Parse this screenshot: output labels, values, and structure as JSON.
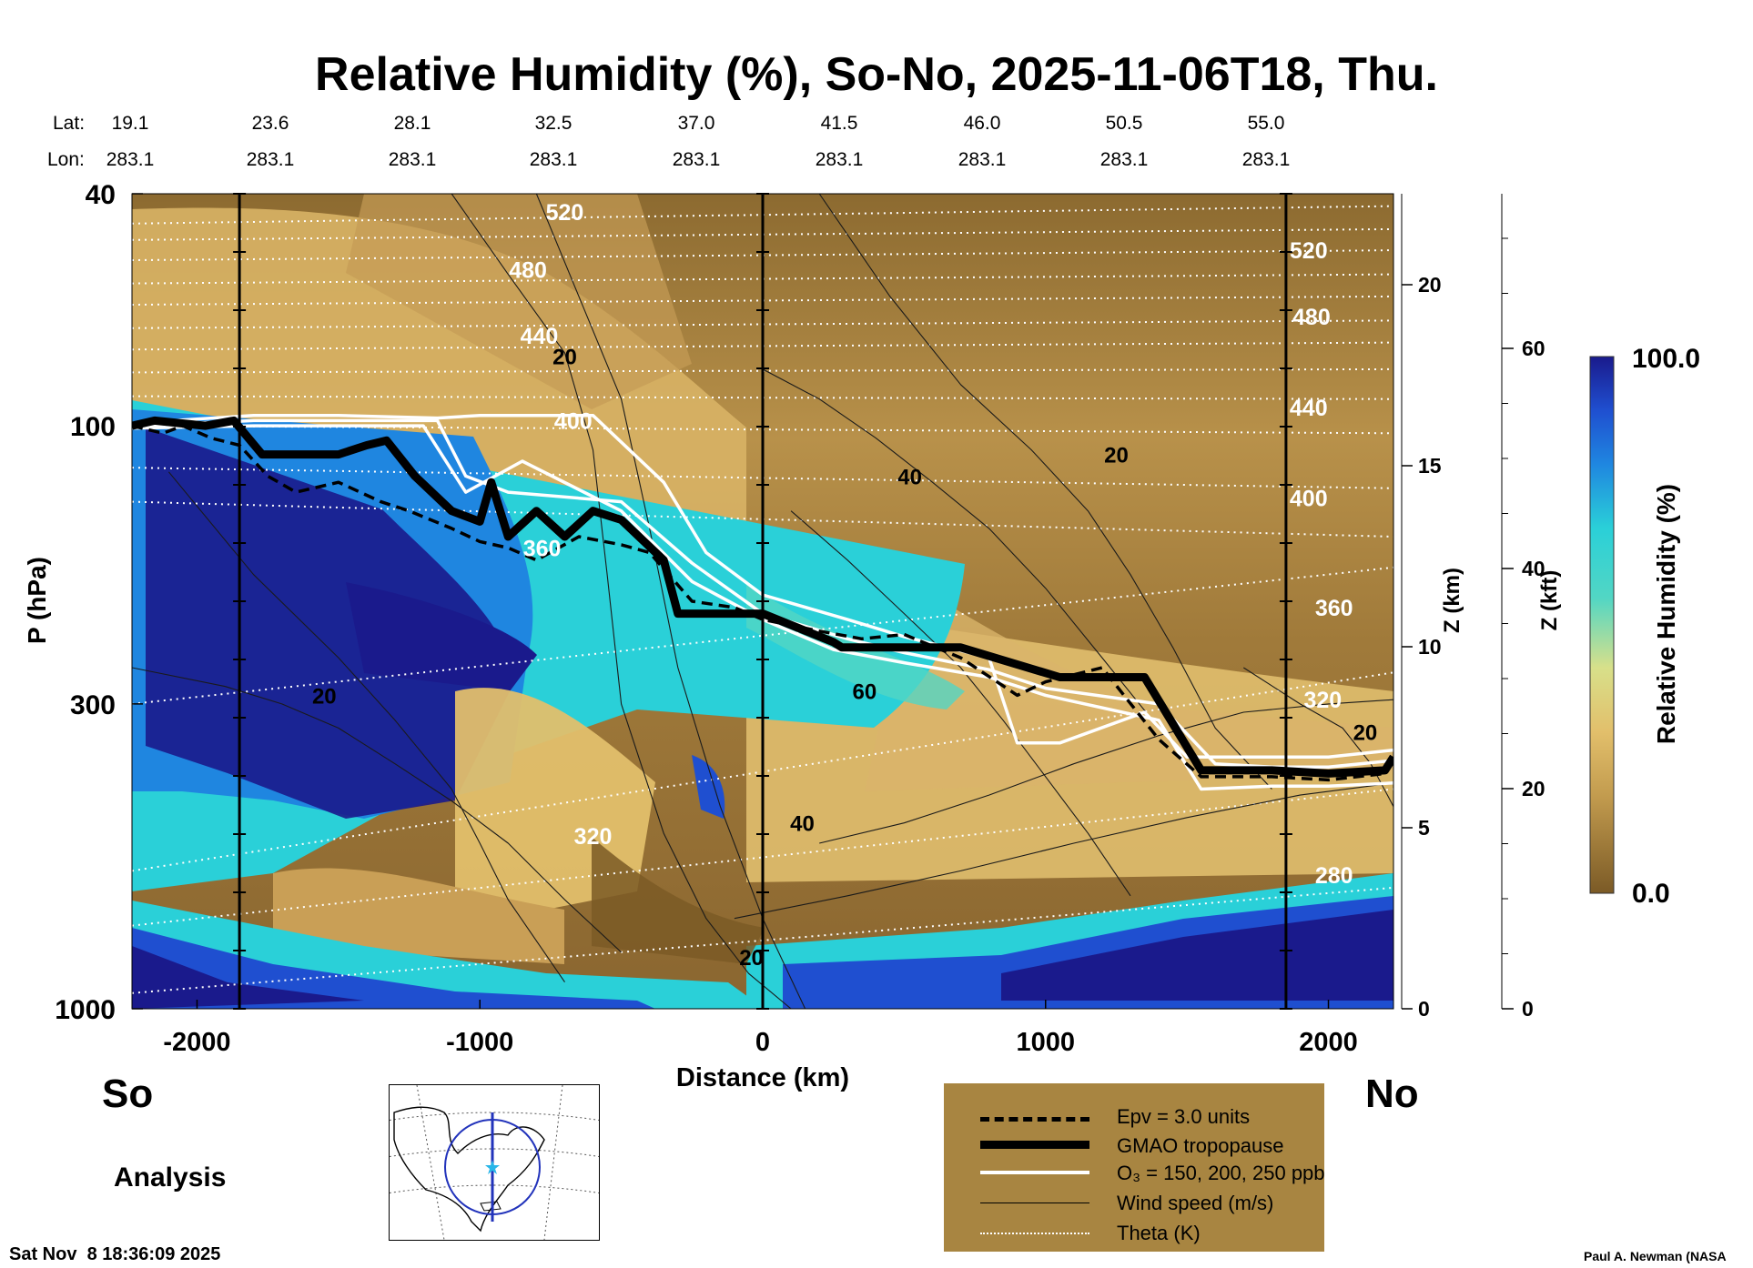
{
  "title": "Relative Humidity (%), So-No, 2025-11-06T18, Thu.",
  "header": {
    "lat_label": "Lat:",
    "lon_label": "Lon:",
    "lat": [
      "19.1",
      "23.6",
      "28.1",
      "32.5",
      "37.0",
      "41.5",
      "46.0",
      "50.5",
      "55.0"
    ],
    "lon": [
      "283.1",
      "283.1",
      "283.1",
      "283.1",
      "283.1",
      "283.1",
      "283.1",
      "283.1",
      "283.1"
    ]
  },
  "left_end": "So",
  "right_end": "No",
  "analysis_label": "Analysis",
  "timestamp": "Sat Nov  8 18:36:09 2025",
  "credit": "Paul A. Newman (NASA",
  "colors": {
    "brown_dry": "#7b5a26",
    "tan": "#e2bf6b",
    "cyan": "#2ad0d8",
    "blue": "#1f4fd0",
    "navy": "#1a1a8c",
    "legend_bg": "#a88541"
  },
  "legend": {
    "epv": "Epv = 3.0 units",
    "tropopause": "GMAO tropopause",
    "o3": "O₃ = 150, 200, 250 ppb",
    "wind": "Wind speed (m/s)",
    "theta": "Theta (K)"
  },
  "colorbar": {
    "max_label": "100.0",
    "min_label": "0.0",
    "title": "Relative Humidity (%)"
  },
  "chart_data": {
    "type": "heatmap",
    "title": "Relative Humidity (%), So-No, 2025-11-06T18, Thu.",
    "xlabel": "Distance (km)",
    "ylabel": "P (hPa)",
    "xlim": [
      -2230,
      2230
    ],
    "ylim": [
      1000,
      40
    ],
    "y_scale": "log",
    "x_ticks": [
      "-2000",
      "-1000",
      "0",
      "1000",
      "2000"
    ],
    "x_tick_values": [
      -2000,
      -1000,
      0,
      1000,
      2000
    ],
    "y_ticks": [
      "40",
      "100",
      "300",
      "1000"
    ],
    "y_tick_values": [
      40,
      100,
      300,
      1000
    ],
    "z_km_label": "Z (km)",
    "z_km_ticks": [
      "0",
      "5",
      "10",
      "15",
      "20"
    ],
    "z_km_values": [
      0,
      5,
      10,
      15,
      20
    ],
    "z_kft_label": "Z (kft)",
    "z_kft_ticks": [
      "0",
      "20",
      "40",
      "60"
    ],
    "z_kft_values": [
      0,
      20,
      40,
      60
    ],
    "colorbar_range": [
      0,
      100
    ],
    "theta_labels": [
      {
        "text": "520",
        "x": -700,
        "p": 43
      },
      {
        "text": "480",
        "x": -830,
        "p": 54
      },
      {
        "text": "440",
        "x": -790,
        "p": 70
      },
      {
        "text": "400",
        "x": -670,
        "p": 98
      },
      {
        "text": "360",
        "x": -780,
        "p": 162
      },
      {
        "text": "320",
        "x": -600,
        "p": 505
      },
      {
        "text": "520",
        "x": 1930,
        "p": 50
      },
      {
        "text": "480",
        "x": 1940,
        "p": 65
      },
      {
        "text": "440",
        "x": 1930,
        "p": 93
      },
      {
        "text": "400",
        "x": 1930,
        "p": 133
      },
      {
        "text": "360",
        "x": 2020,
        "p": 205
      },
      {
        "text": "320",
        "x": 1980,
        "p": 295
      },
      {
        "text": "280",
        "x": 2020,
        "p": 590
      }
    ],
    "wind_labels": [
      {
        "text": "20",
        "x": -700,
        "p": 76
      },
      {
        "text": "40",
        "x": 520,
        "p": 122
      },
      {
        "text": "20",
        "x": 1250,
        "p": 112
      },
      {
        "text": "60",
        "x": 360,
        "p": 285
      },
      {
        "text": "20",
        "x": -1550,
        "p": 290
      },
      {
        "text": "40",
        "x": 140,
        "p": 480
      },
      {
        "text": "20",
        "x": -40,
        "p": 815
      },
      {
        "text": "20",
        "x": 2130,
        "p": 335
      }
    ],
    "tropopause": {
      "x": [
        -2230,
        -2150,
        -1970,
        -1870,
        -1770,
        -1650,
        -1500,
        -1400,
        -1330,
        -1230,
        -1100,
        -1000,
        -960,
        -900,
        -800,
        -700,
        -600,
        -500,
        -350,
        -300,
        0,
        250,
        280,
        700,
        1050,
        1350,
        1550,
        1800,
        2000,
        2200,
        2230
      ],
      "p": [
        100,
        98,
        100,
        98,
        112,
        112,
        112,
        108,
        106,
        122,
        140,
        146,
        125,
        155,
        140,
        155,
        140,
        145,
        170,
        210,
        210,
        235,
        240,
        240,
        270,
        270,
        390,
        390,
        395,
        390,
        370
      ]
    },
    "epv": {
      "x": [
        -2230,
        -2120,
        -2050,
        -1950,
        -1850,
        -1750,
        -1650,
        -1500,
        -1350,
        -1250,
        -1100,
        -1000,
        -900,
        -800,
        -650,
        -500,
        -400,
        -250,
        -100,
        0,
        200,
        350,
        500,
        700,
        900,
        1000,
        1200,
        1400,
        1550,
        1800,
        2000,
        2200
      ],
      "p": [
        100,
        103,
        100,
        105,
        108,
        122,
        130,
        125,
        135,
        140,
        150,
        158,
        162,
        170,
        155,
        160,
        165,
        200,
        205,
        215,
        225,
        232,
        228,
        250,
        290,
        275,
        260,
        345,
        400,
        400,
        405,
        395
      ]
    },
    "o3_contours": [
      {
        "x": [
          -2230,
          -1800,
          -1500,
          -1150,
          -1000,
          -900,
          -600,
          -350,
          -200,
          0,
          300,
          500,
          800,
          900,
          1050,
          1350,
          1500,
          1800,
          2000,
          2230
        ],
        "p": [
          99,
          96,
          96,
          97,
          96,
          96,
          96,
          125,
          165,
          195,
          215,
          230,
          250,
          350,
          350,
          310,
          370,
          370,
          370,
          360
        ]
      },
      {
        "x": [
          -2230,
          -1800,
          -1500,
          -1150,
          -1050,
          -900,
          -500,
          -250,
          0,
          300,
          500,
          800,
          1000,
          1400,
          1600,
          1800,
          2000,
          2230
        ],
        "p": [
          100,
          98,
          98,
          98,
          122,
          130,
          135,
          172,
          210,
          232,
          245,
          262,
          282,
          300,
          380,
          385,
          385,
          375
        ]
      },
      {
        "x": [
          -2230,
          -1800,
          -1500,
          -1200,
          -1050,
          -850,
          -500,
          -250,
          0,
          250,
          500,
          800,
          1000,
          1400,
          1550,
          1800,
          2000,
          2230
        ],
        "p": [
          101,
          100,
          100,
          100,
          130,
          115,
          140,
          185,
          215,
          242,
          255,
          270,
          290,
          320,
          420,
          415,
          415,
          410
        ]
      }
    ]
  }
}
